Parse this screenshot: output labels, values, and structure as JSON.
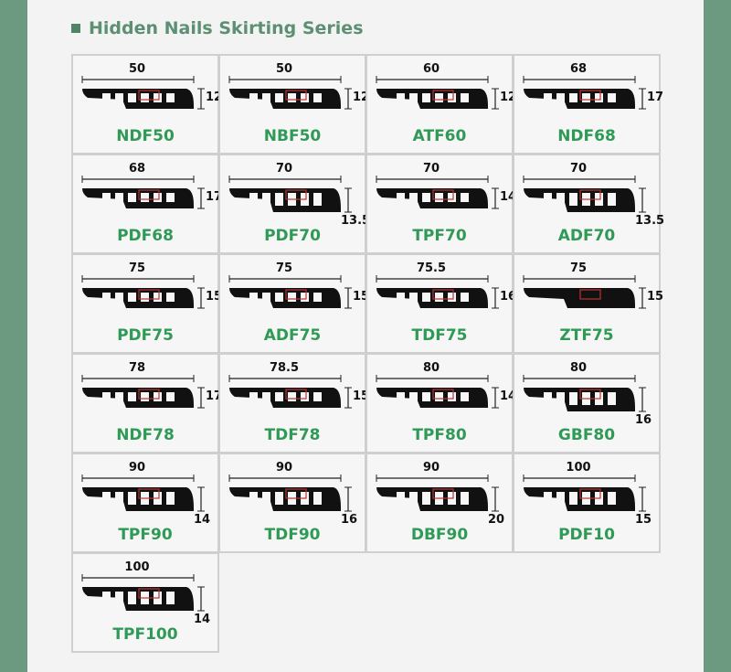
{
  "title": "Hidden Nails Skirting Series",
  "colors": {
    "background": "#6b9a80",
    "panel": "#f3f3f3",
    "title": "#5d8f72",
    "code": "#2f9a55",
    "grid": "#cfcfcf"
  },
  "items": [
    {
      "code": "NDF50",
      "width": "50",
      "height": "12"
    },
    {
      "code": "NBF50",
      "width": "50",
      "height": "12"
    },
    {
      "code": "ATF60",
      "width": "60",
      "height": "12"
    },
    {
      "code": "NDF68",
      "width": "68",
      "height": "17"
    },
    {
      "code": "PDF68",
      "width": "68",
      "height": "17"
    },
    {
      "code": "PDF70",
      "width": "70",
      "height": "13.5"
    },
    {
      "code": "TPF70",
      "width": "70",
      "height": "14"
    },
    {
      "code": "ADF70",
      "width": "70",
      "height": "13.5"
    },
    {
      "code": "PDF75",
      "width": "75",
      "height": "15"
    },
    {
      "code": "ADF75",
      "width": "75",
      "height": "15"
    },
    {
      "code": "TDF75",
      "width": "75.5",
      "height": "16"
    },
    {
      "code": "ZTF75",
      "width": "75",
      "height": "15"
    },
    {
      "code": "NDF78",
      "width": "78",
      "height": "17"
    },
    {
      "code": "TDF78",
      "width": "78.5",
      "height": "15"
    },
    {
      "code": "TPF80",
      "width": "80",
      "height": "14"
    },
    {
      "code": "GBF80",
      "width": "80",
      "height": "16"
    },
    {
      "code": "TPF90",
      "width": "90",
      "height": "14"
    },
    {
      "code": "TDF90",
      "width": "90",
      "height": "16"
    },
    {
      "code": "DBF90",
      "width": "90",
      "height": "20"
    },
    {
      "code": "PDF10",
      "width": "100",
      "height": "15"
    },
    {
      "code": "TPF100",
      "width": "100",
      "height": "14"
    }
  ]
}
